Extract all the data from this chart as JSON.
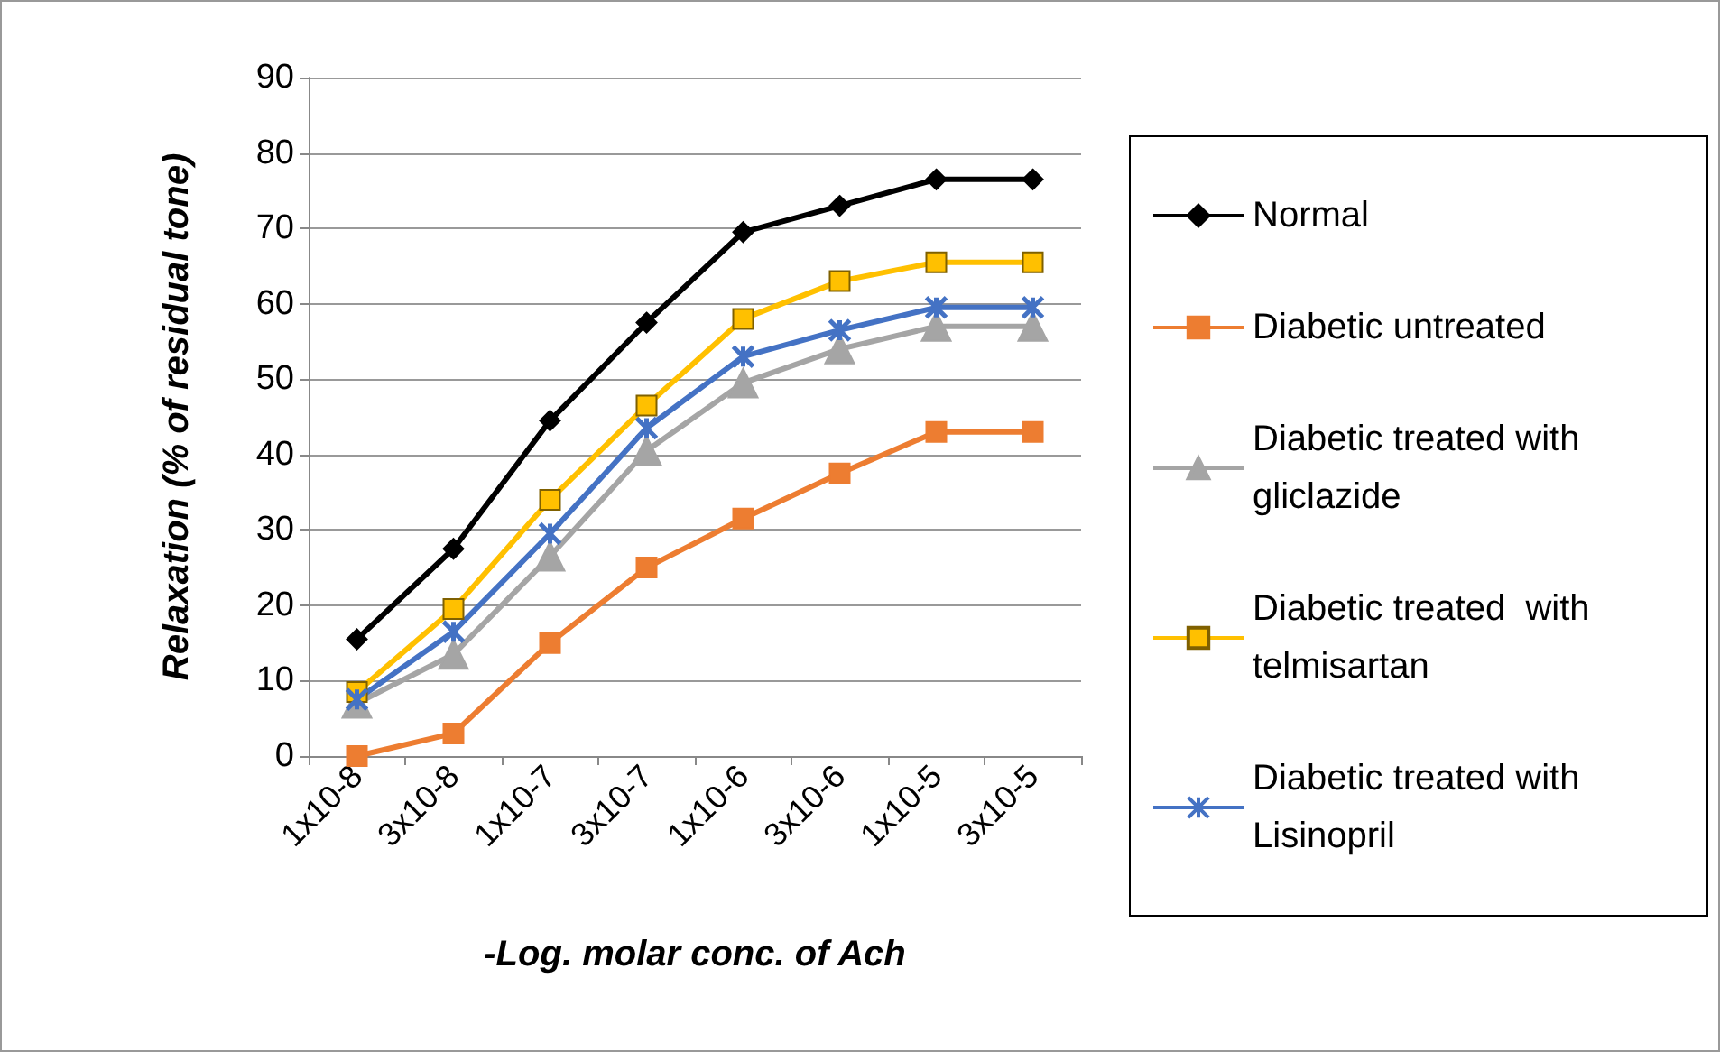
{
  "chart_data": {
    "type": "line",
    "xlabel": "-Log. molar conc. of Ach",
    "ylabel": "Relaxation (% of residual tone)",
    "categories": [
      "1x10-8",
      "3x10-8",
      "1x10-7",
      "3x10-7",
      "1x10-6",
      "3x10-6",
      "1x10-5",
      "3x10-5"
    ],
    "ylim": [
      0,
      90
    ],
    "yticks": [
      0,
      10,
      20,
      30,
      40,
      50,
      60,
      70,
      80,
      90
    ],
    "grid": "y",
    "legend": "right",
    "line_style": "solid",
    "series": [
      {
        "name": "Normal",
        "color": "#000000",
        "marker": "diamond",
        "values": [
          15.5,
          27.5,
          44.5,
          57.5,
          69.5,
          73,
          76.5,
          76.5
        ]
      },
      {
        "name": "Diabetic untreated",
        "color": "#ed7d31",
        "marker": "square",
        "values": [
          0,
          3,
          15,
          25,
          31.5,
          37.5,
          43,
          43
        ]
      },
      {
        "name": "Diabetic treated with gliclazide",
        "color": "#a5a5a5",
        "marker": "triangle",
        "values": [
          7,
          13.5,
          26.5,
          40.5,
          49.5,
          54,
          57,
          57
        ]
      },
      {
        "name": "Diabetic treated  with telmisartan",
        "color": "#ffc000",
        "marker": "square",
        "values": [
          8.5,
          19.5,
          34,
          46.5,
          58,
          63,
          65.5,
          65.5
        ]
      },
      {
        "name": "Diabetic treated with Lisinopril",
        "color": "#4472c4",
        "marker": "cross",
        "values": [
          7.5,
          16.5,
          29.5,
          43.5,
          53,
          56.5,
          59.5,
          59.5
        ]
      }
    ]
  }
}
